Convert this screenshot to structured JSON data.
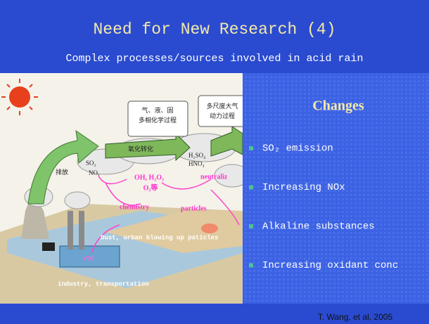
{
  "slide": {
    "title": "Need for New Research (4)",
    "subtitle": "Complex processes/sources involved in acid rain",
    "citation": "T. Wang, et al, 2005"
  },
  "figure": {
    "labels": {
      "multiphase_1": "气、液、固",
      "multiphase_2": "多相化学过程",
      "multiscale_1": "多尺度大气",
      "multiscale_2": "动力过程",
      "emission": "排放",
      "conversion": "氧化转化",
      "so2": "SO₂",
      "nox": "NOₓ",
      "h2so4": "H₂SO₄",
      "hno3": "HNO₃",
      "oxidants_1": "OH, H₂O₂",
      "oxidants_2": "O₃等",
      "chemistry": "chemistry",
      "particles": "particles",
      "neutraliz": "neutraliz",
      "dust": "Dust, urban blowing up paticles",
      "industry": "industry, transportation",
      "voc": "VOC"
    }
  },
  "panel": {
    "heading": "Changes",
    "bullets": [
      "SO₂ emission",
      "Increasing NOx",
      "Alkaline substances",
      "Increasing oxidant conc"
    ]
  }
}
